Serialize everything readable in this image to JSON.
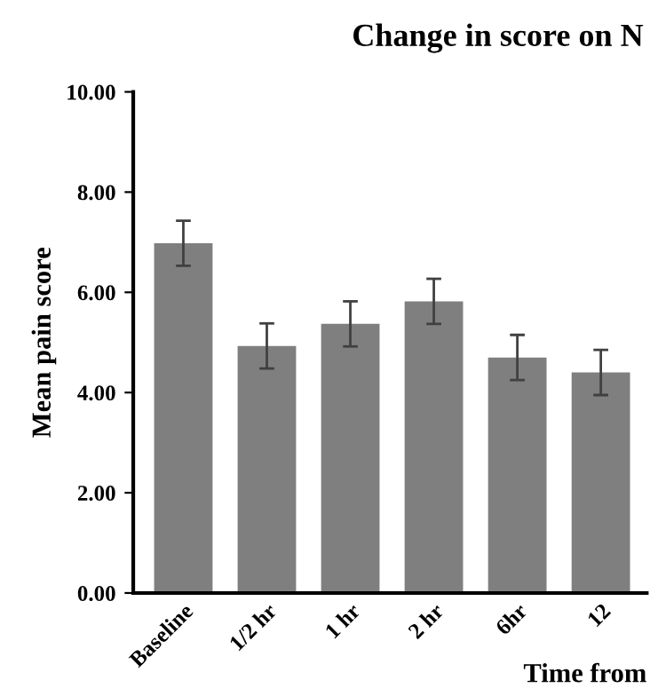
{
  "chart_data": {
    "type": "bar",
    "title": "Change in score on N",
    "xlabel": "Time from",
    "ylabel": "Mean pain score",
    "categories": [
      "Baseline",
      "1/2 hr",
      "1 hr",
      "2 hr",
      "6hr",
      "12"
    ],
    "values": [
      6.98,
      4.93,
      5.37,
      5.82,
      4.7,
      4.4
    ],
    "errors": [
      0.45,
      0.45,
      0.45,
      0.45,
      0.45,
      0.45
    ],
    "color": "#7f7f7f",
    "ylim": [
      0,
      10
    ],
    "yticks": [
      {
        "value": 0,
        "label": "0.00"
      },
      {
        "value": 2,
        "label": "2.00"
      },
      {
        "value": 4,
        "label": "4.00"
      },
      {
        "value": 6,
        "label": "6.00"
      },
      {
        "value": 8,
        "label": "8.00"
      },
      {
        "value": 10,
        "label": "10.00"
      }
    ],
    "grid": false
  }
}
